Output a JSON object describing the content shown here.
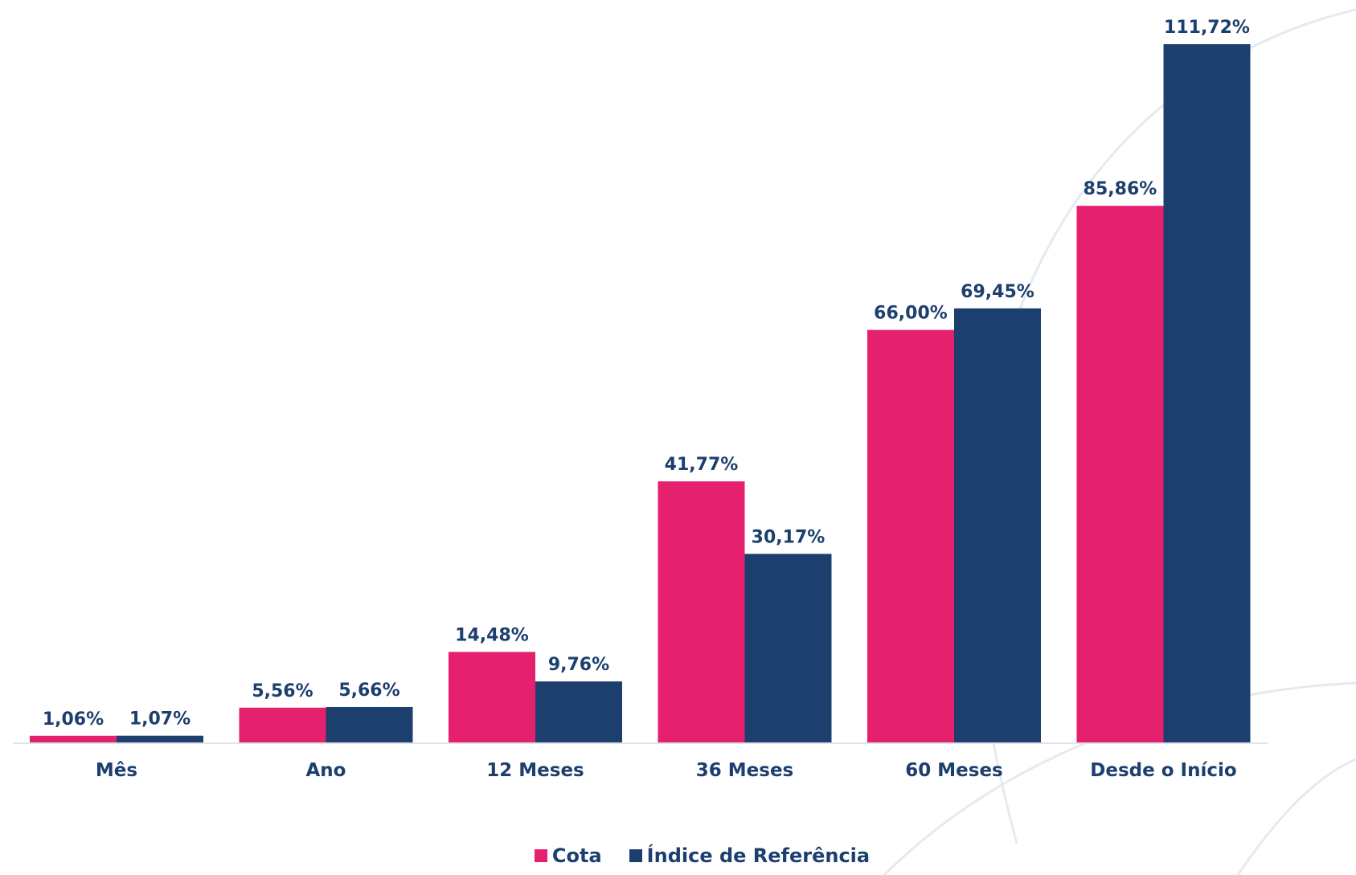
{
  "colors": {
    "cota": "#e4206f",
    "indice": "#1c3f6e",
    "axis": "#dde3ea",
    "watermark": "#e6eaef"
  },
  "chart_data": {
    "type": "bar",
    "categories": [
      "Mês",
      "Ano",
      "12 Meses",
      "36 Meses",
      "60 Meses",
      "Desde o Início"
    ],
    "series": [
      {
        "name": "Cota",
        "values": [
          1.06,
          5.56,
          14.48,
          41.77,
          66.0,
          85.86
        ],
        "labels": [
          "1,06%",
          "5,56%",
          "14,48%",
          "41,77%",
          "66,00%",
          "85,86%"
        ]
      },
      {
        "name": "Índice de Referência",
        "values": [
          1.07,
          5.66,
          9.76,
          30.17,
          69.45,
          111.72
        ],
        "labels": [
          "1,07%",
          "5,66%",
          "9,76%",
          "30,17%",
          "69,45%",
          "111,72%"
        ]
      }
    ],
    "ylim": [
      0,
      111.72
    ],
    "grid": false,
    "legend_position": "bottom-center"
  }
}
